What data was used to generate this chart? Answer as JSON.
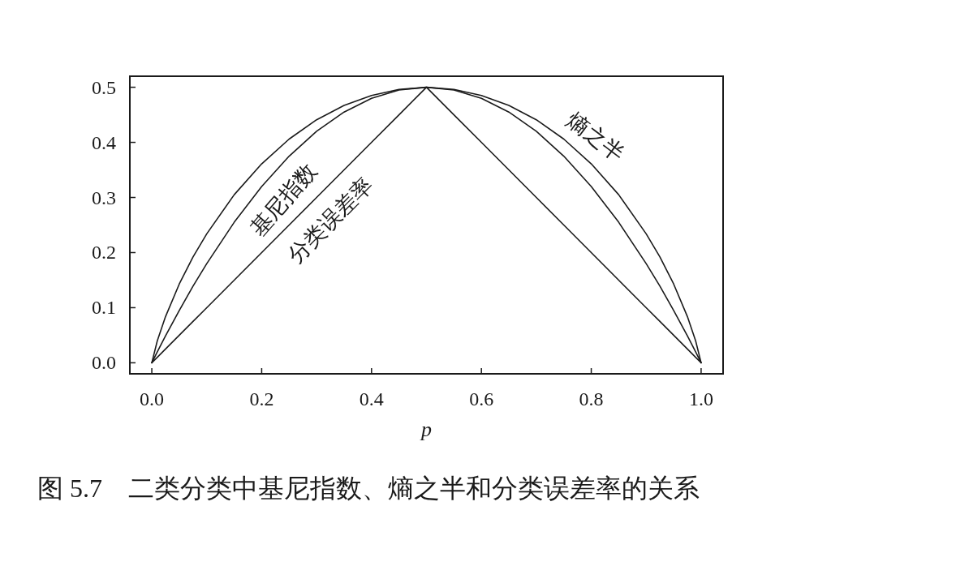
{
  "chart_data": {
    "type": "line",
    "x": [
      0,
      0.01,
      0.025,
      0.05,
      0.075,
      0.1,
      0.15,
      0.2,
      0.25,
      0.3,
      0.35,
      0.4,
      0.45,
      0.5,
      0.55,
      0.6,
      0.65,
      0.7,
      0.75,
      0.8,
      0.85,
      0.9,
      0.925,
      0.95,
      0.975,
      0.99,
      1
    ],
    "series": [
      {
        "name": "基尼指数",
        "color": "#1a1a1a",
        "values": [
          0,
          0.02,
          0.049,
          0.095,
          0.139,
          0.18,
          0.255,
          0.32,
          0.375,
          0.42,
          0.455,
          0.48,
          0.495,
          0.5,
          0.495,
          0.48,
          0.455,
          0.42,
          0.375,
          0.32,
          0.255,
          0.18,
          0.139,
          0.095,
          0.049,
          0.02,
          0
        ]
      },
      {
        "name": "熵之半",
        "color": "#1a1a1a",
        "values": [
          0,
          0.04,
          0.084,
          0.143,
          0.192,
          0.234,
          0.305,
          0.361,
          0.406,
          0.441,
          0.467,
          0.485,
          0.496,
          0.5,
          0.496,
          0.485,
          0.467,
          0.441,
          0.406,
          0.361,
          0.305,
          0.234,
          0.192,
          0.143,
          0.084,
          0.04,
          0
        ]
      },
      {
        "name": "分类误差率",
        "color": "#1a1a1a",
        "values": [
          0,
          0.01,
          0.025,
          0.05,
          0.075,
          0.1,
          0.15,
          0.2,
          0.25,
          0.3,
          0.35,
          0.4,
          0.45,
          0.5,
          0.45,
          0.4,
          0.35,
          0.3,
          0.25,
          0.2,
          0.15,
          0.1,
          0.075,
          0.05,
          0.025,
          0.01,
          0
        ]
      }
    ],
    "xlabel": "p",
    "xlim": [
      -0.04,
      1.04
    ],
    "xticks": [
      {
        "value": 0,
        "label": "0.0"
      },
      0.2,
      0.4,
      0.6,
      0.8,
      {
        "value": 1,
        "label": "1.0"
      }
    ],
    "ylim": [
      -0.02,
      0.52
    ],
    "yticks": [
      {
        "value": 0,
        "label": "0.0"
      },
      0.1,
      0.2,
      0.3,
      0.4,
      0.5
    ],
    "line_style": "solid",
    "annotations": [
      "图 5.7　二类分类中基尼指数、熵之半和分类误差率的关系"
    ]
  }
}
